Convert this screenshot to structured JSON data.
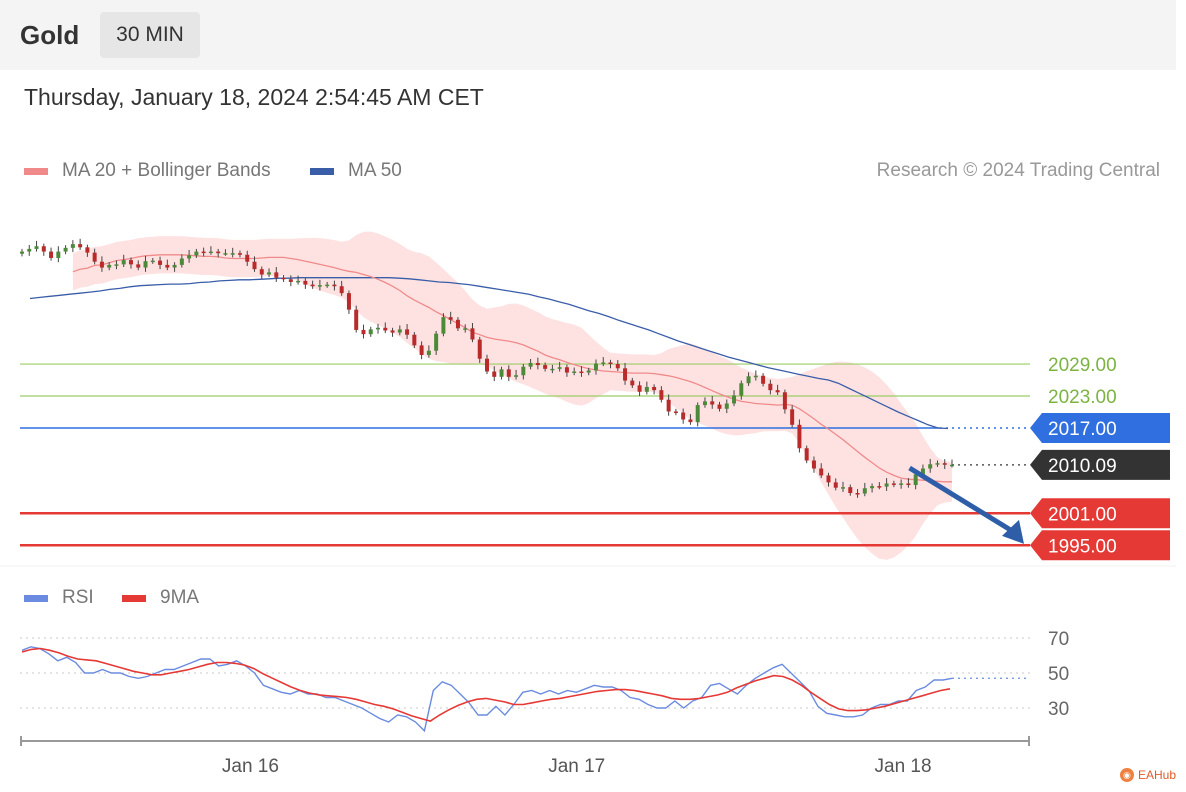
{
  "header": {
    "asset": "Gold",
    "interval": "30 MIN"
  },
  "datetime": "Thursday, January 18, 2024 2:54:45 AM CET",
  "legend": {
    "ma20": {
      "label": "MA 20 + Bollinger Bands",
      "color": "#f08a8a"
    },
    "ma50": {
      "label": "MA 50",
      "color": "#3a5da8"
    },
    "rsi": {
      "label": "RSI",
      "color": "#6a8be0"
    },
    "ma9": {
      "label": "9MA",
      "color": "#e53935"
    }
  },
  "credit": "Research © 2024 Trading Central",
  "watermark": "EAHub",
  "chart_data": [
    {
      "type": "candlestick",
      "ylim": [
        1988,
        2056
      ],
      "xlim": [
        0,
        2.85
      ],
      "x_ticks": [
        {
          "x": 0.7,
          "label": "Jan 16"
        },
        {
          "x": 1.7,
          "label": "Jan 17"
        },
        {
          "x": 2.7,
          "label": "Jan 18"
        }
      ],
      "price_levels": [
        {
          "value": 2029.0,
          "label": "2029.00",
          "style": "resistance",
          "color": "#9ccc65"
        },
        {
          "value": 2023.0,
          "label": "2023.00",
          "style": "resistance",
          "color": "#9ccc65"
        },
        {
          "value": 2017.0,
          "label": "2017.00",
          "style": "pivot",
          "color": "#2f6fdf"
        },
        {
          "value": 2010.09,
          "label": "2010.09",
          "style": "current",
          "color": "#333333"
        },
        {
          "value": 2001.0,
          "label": "2001.00",
          "style": "support",
          "color": "#e53935"
        },
        {
          "value": 1995.0,
          "label": "1995.00",
          "style": "support",
          "color": "#e53935"
        }
      ],
      "forecast_arrow": {
        "from": [
          2.72,
          2009.5
        ],
        "to": [
          2.97,
          1996
        ],
        "color": "#2f5ea8"
      },
      "close": [
        2050.1,
        2050.6,
        2051.1,
        2050.1,
        2048.9,
        2050.1,
        2050.8,
        2051.5,
        2050.9,
        2049.9,
        2048.2,
        2047.1,
        2047.6,
        2047.7,
        2048.5,
        2047.7,
        2047.1,
        2048.3,
        2048.4,
        2047.6,
        2047.1,
        2047.6,
        2048.8,
        2049.4,
        2050.1,
        2050.0,
        2050.1,
        2049.8,
        2049.8,
        2049.8,
        2049.5,
        2048.2,
        2046.8,
        2045.8,
        2046.2,
        2045.2,
        2044.9,
        2044.4,
        2044.6,
        2043.9,
        2043.6,
        2043.8,
        2043.9,
        2043.6,
        2042.3,
        2039.2,
        2035.4,
        2034.6,
        2035.5,
        2035.8,
        2035.3,
        2034.9,
        2035.5,
        2034.5,
        2032.5,
        2030.7,
        2031.5,
        2034.7,
        2037.8,
        2037.3,
        2035.7,
        2035.7,
        2033.6,
        2030.0,
        2027.6,
        2026.6,
        2028.0,
        2026.6,
        2026.9,
        2028.5,
        2029.2,
        2028.8,
        2028.1,
        2028.1,
        2028.4,
        2027.4,
        2027.6,
        2027.4,
        2027.8,
        2029.1,
        2029.3,
        2029.0,
        2028.2,
        2025.9,
        2025.0,
        2023.8,
        2024.7,
        2024.1,
        2022.3,
        2020.1,
        2019.9,
        2018.6,
        2018.1,
        2021.3,
        2022.0,
        2021.4,
        2020.6,
        2021.6,
        2023.1,
        2025.4,
        2026.7,
        2026.8,
        2025.3,
        2024.1,
        2023.7,
        2020.5,
        2017.6,
        2013.2,
        2010.9,
        2009.4,
        2008.1,
        2006.8,
        2005.8,
        2005.9,
        2004.8,
        2004.7,
        2005.7,
        2006.1,
        2006.0,
        2006.6,
        2006.4,
        2006.6,
        2006.3,
        2008.3,
        2009.4,
        2010.2,
        2010.4,
        2010.1,
        2010.1
      ],
      "ma20": [
        2046.3,
        2046.8,
        2047.0,
        2047.5,
        2047.6,
        2048.0,
        2048.4,
        2048.6,
        2048.8,
        2049.1,
        2049.3,
        2049.4,
        2049.5,
        2049.5,
        2049.5,
        2049.5,
        2049.4,
        2049.3,
        2049.2,
        2049.2,
        2049.1,
        2048.9,
        2048.8,
        2048.8,
        2048.8,
        2048.8,
        2048.9,
        2049.0,
        2049.0,
        2049.0,
        2048.8,
        2048.6,
        2048.3,
        2048.0,
        2047.7,
        2047.4,
        2047.1,
        2046.7,
        2046.4,
        2046.2,
        2045.8,
        2045.4,
        2044.9,
        2044.3,
        2043.6,
        2042.8,
        2041.8,
        2041.0,
        2040.3,
        2039.6,
        2038.8,
        2038.1,
        2037.3,
        2036.6,
        2035.8,
        2035.0,
        2034.5,
        2034.0,
        2033.7,
        2033.5,
        2033.3,
        2033.0,
        2032.6,
        2032.0,
        2031.4,
        2030.7,
        2030.2,
        2029.8,
        2029.3,
        2028.9,
        2028.5,
        2028.1,
        2027.9,
        2027.7,
        2027.6,
        2027.5,
        2027.4,
        2027.3,
        2027.3,
        2027.3,
        2027.2,
        2027.0,
        2026.8,
        2026.5,
        2026.1,
        2025.7,
        2025.2,
        2024.6,
        2024.0,
        2023.4,
        2022.9,
        2022.4,
        2022.0,
        2021.8,
        2021.6,
        2021.5,
        2021.4,
        2021.3,
        2021.4,
        2021.3,
        2020.6,
        2019.7,
        2018.7,
        2017.7,
        2016.8,
        2015.8,
        2014.8,
        2013.7,
        2012.6,
        2011.5,
        2010.5,
        2009.5,
        2008.7,
        2008.1,
        2007.6,
        2007.4,
        2007.3,
        2007.2,
        2007.1,
        2007.0,
        2006.9,
        2006.9
      ],
      "ma50": [
        2041.3,
        2041.5,
        2041.7,
        2041.9,
        2042.1,
        2042.3,
        2042.5,
        2042.7,
        2043.0,
        2043.2,
        2043.5,
        2043.7,
        2043.8,
        2043.9,
        2044.0,
        2044.0,
        2044.1,
        2044.3,
        2044.4,
        2044.6,
        2044.7,
        2044.8,
        2044.8,
        2044.9,
        2045.0,
        2045.1,
        2045.1,
        2045.2,
        2045.2,
        2045.2,
        2045.2,
        2045.2,
        2045.2,
        2045.2,
        2045.2,
        2045.2,
        2045.2,
        2045.1,
        2045.0,
        2044.8,
        2044.6,
        2044.4,
        2044.3,
        2044.1,
        2043.9,
        2043.6,
        2043.3,
        2043.0,
        2042.7,
        2042.4,
        2042.1,
        2041.6,
        2041.2,
        2040.7,
        2040.2,
        2039.6,
        2039.0,
        2038.5,
        2037.9,
        2037.2,
        2036.6,
        2036.0,
        2035.4,
        2034.7,
        2034.0,
        2033.3,
        2032.7,
        2032.1,
        2031.5,
        2030.9,
        2030.3,
        2029.8,
        2029.3,
        2028.8,
        2028.3,
        2027.9,
        2027.5,
        2027.1,
        2026.7,
        2026.3,
        2026.0,
        2025.4,
        2024.5,
        2023.6,
        2022.7,
        2021.8,
        2020.9,
        2020.0,
        2019.2,
        2018.4,
        2017.6,
        2017.0,
        2016.9
      ]
    },
    {
      "type": "line",
      "ylim": [
        10,
        80
      ],
      "y_ticks": [
        70,
        50,
        30
      ],
      "series": [
        {
          "name": "RSI",
          "color": "#6a8be0",
          "values": [
            63,
            65,
            64,
            61,
            57,
            59,
            56,
            50,
            50,
            52,
            50,
            50,
            48,
            47,
            48,
            50,
            52,
            52,
            54,
            56,
            58,
            58,
            54,
            55,
            57,
            54,
            50,
            43,
            41,
            39,
            38,
            40,
            38,
            38,
            36,
            36,
            34,
            32,
            30,
            27,
            24,
            22,
            26,
            25,
            22,
            17,
            40,
            45,
            43,
            38,
            33,
            26,
            26,
            31,
            26,
            32,
            39,
            40,
            38,
            40,
            38,
            40,
            39,
            41,
            43,
            42,
            42,
            40,
            36,
            35,
            32,
            30,
            30,
            34,
            30,
            34,
            36,
            43,
            44,
            41,
            38,
            43,
            47,
            50,
            53,
            55,
            50,
            45,
            40,
            31,
            27,
            26,
            25,
            25,
            26,
            30,
            32,
            32,
            34,
            34,
            40,
            42,
            46,
            46,
            47
          ]
        },
        {
          "name": "9MA",
          "color": "#e53935",
          "values": [
            62,
            63.5,
            64,
            63,
            61.5,
            59.5,
            58,
            57.5,
            57,
            55.5,
            54,
            52.5,
            51,
            50,
            49,
            49,
            50,
            51,
            52,
            53.5,
            55,
            56,
            56,
            55.5,
            54.5,
            52.5,
            49.5,
            47,
            44.5,
            42,
            40,
            38.5,
            37.5,
            37,
            36.5,
            36,
            35,
            33.5,
            32,
            31,
            29.5,
            27.5,
            25.5,
            24,
            22.5,
            26,
            29,
            31.5,
            33.5,
            35,
            35.5,
            34.5,
            33.5,
            32,
            32,
            33,
            34,
            35,
            35.5,
            36.5,
            37.5,
            38.5,
            39.5,
            40,
            40.5,
            40.5,
            40,
            39,
            38,
            37,
            35.5,
            35,
            35,
            35.5,
            36.5,
            37.5,
            39,
            41.5,
            43.5,
            45.5,
            47,
            48.5,
            48,
            46,
            43,
            39,
            35.5,
            32,
            29.5,
            28.5,
            28.5,
            29,
            30,
            31,
            32.5,
            34,
            35.5,
            37,
            38.5,
            40,
            41
          ]
        }
      ]
    }
  ]
}
